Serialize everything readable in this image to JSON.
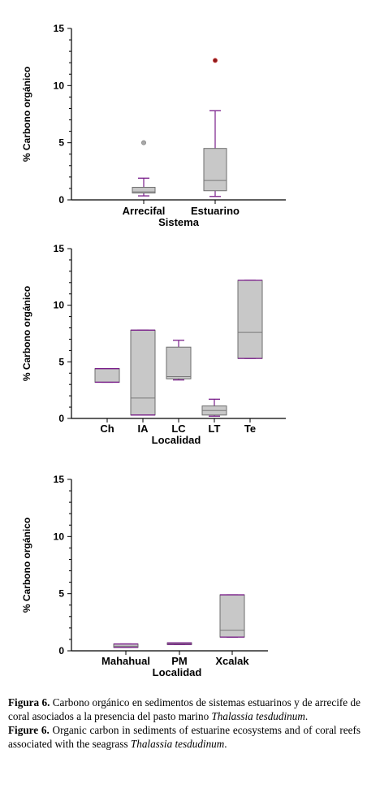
{
  "charts": [
    {
      "ylabel": "% Carbono orgánico",
      "xlabel": "Sistema",
      "yticks": [
        "15",
        "10",
        "5",
        "0"
      ]
    },
    {
      "ylabel": "% Carbono orgánico",
      "xlabel": "Localidad",
      "yticks": [
        "15",
        "10",
        "5",
        "0"
      ]
    },
    {
      "ylabel": "% Carbono orgánico",
      "xlabel": "Localidad",
      "yticks": [
        "15",
        "10",
        "5",
        "0"
      ]
    }
  ],
  "chart_data": [
    {
      "type": "box",
      "xlabel": "Sistema",
      "ylabel": "% Carbono orgánico",
      "ylim": [
        0,
        15
      ],
      "yticks": [
        0,
        5,
        10,
        15
      ],
      "grid": false,
      "categories": [
        "Arrecifal",
        "Estuarino"
      ],
      "boxes": [
        {
          "category": "Arrecifal",
          "min": 0.35,
          "q1": 0.6,
          "median": 0.7,
          "q3": 1.1,
          "max": 1.9,
          "outliers": [
            5.0
          ]
        },
        {
          "category": "Estuarino",
          "min": 0.3,
          "q1": 0.8,
          "median": 1.7,
          "q3": 4.5,
          "max": 7.8,
          "outliers": [
            12.2
          ]
        }
      ]
    },
    {
      "type": "box",
      "xlabel": "Localidad",
      "ylabel": "% Carbono orgánico",
      "ylim": [
        0,
        15
      ],
      "yticks": [
        0,
        5,
        10,
        15
      ],
      "grid": false,
      "categories": [
        "Ch",
        "IA",
        "LC",
        "LT",
        "Te"
      ],
      "boxes": [
        {
          "category": "Ch",
          "min": 3.2,
          "q1": 3.2,
          "median": 3.2,
          "q3": 4.4,
          "max": 4.4,
          "outliers": []
        },
        {
          "category": "IA",
          "min": 0.3,
          "q1": 0.3,
          "median": 1.8,
          "q3": 7.8,
          "max": 7.8,
          "outliers": []
        },
        {
          "category": "LC",
          "min": 3.4,
          "q1": 3.5,
          "median": 3.7,
          "q3": 6.3,
          "max": 6.9,
          "outliers": []
        },
        {
          "category": "LT",
          "min": 0.2,
          "q1": 0.3,
          "median": 0.7,
          "q3": 1.1,
          "max": 1.7,
          "outliers": []
        },
        {
          "category": "Te",
          "min": 5.3,
          "q1": 5.3,
          "median": 7.6,
          "q3": 12.2,
          "max": 12.2,
          "outliers": []
        }
      ]
    },
    {
      "type": "box",
      "xlabel": "Localidad",
      "ylabel": "% Carbono orgánico",
      "ylim": [
        0,
        15
      ],
      "yticks": [
        0,
        5,
        10,
        15
      ],
      "grid": false,
      "categories": [
        "Mahahual",
        "PM",
        "Xcalak"
      ],
      "boxes": [
        {
          "category": "Mahahual",
          "min": 0.3,
          "q1": 0.3,
          "median": 0.4,
          "q3": 0.6,
          "max": 0.6,
          "outliers": []
        },
        {
          "category": "PM",
          "min": 0.55,
          "q1": 0.55,
          "median": 0.6,
          "q3": 0.7,
          "max": 0.7,
          "outliers": []
        },
        {
          "category": "Xcalak",
          "min": 1.2,
          "q1": 1.2,
          "median": 1.8,
          "q3": 4.9,
          "max": 4.9,
          "outliers": []
        }
      ]
    }
  ],
  "style": {
    "box_fill": "#c8c8c8",
    "box_stroke": "#6e6e6e",
    "whisker_color": "#7a1f8a",
    "median_color": "#7a7a7a",
    "outlier_fill": "#a9a9a9",
    "outlier_far_fill": "#8b1a1a"
  },
  "caption": {
    "es_label": "Figura 6.",
    "es_text_1": " Carbono orgánico en sedimentos de sistemas estuarinos y de arrecife de coral asociados a la presencia del pasto marino ",
    "es_species": "Thalassia tesdudinum",
    "es_end": ".",
    "en_label": "Figure 6.",
    "en_text_1": " Organic carbon in sediments of estuarine ecosystems and of coral reefs associated with the seagrass ",
    "en_species": "Thalassia tesdudinum",
    "en_end": "."
  }
}
